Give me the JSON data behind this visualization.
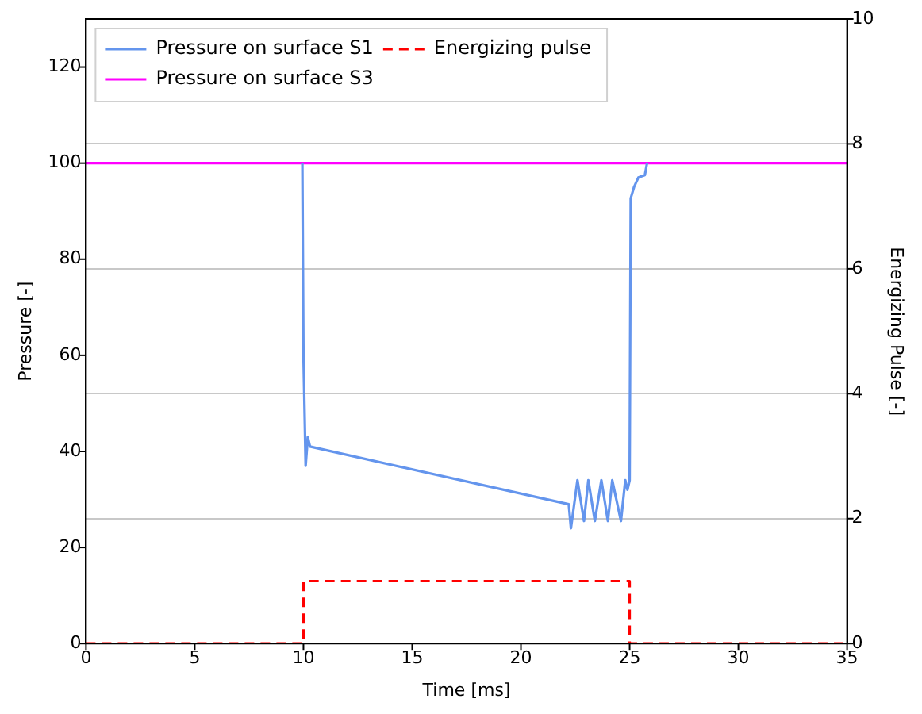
{
  "chart_data": {
    "type": "line",
    "xlabel": "Time [ms]",
    "ylabel": "Pressure [-]",
    "y2label": "Energizing Pulse [-]",
    "xlim": [
      0,
      35
    ],
    "xticks": [
      0,
      5,
      10,
      15,
      20,
      25,
      30,
      35
    ],
    "ylim": [
      0,
      130
    ],
    "yticks": [
      0,
      20,
      40,
      60,
      80,
      100,
      120
    ],
    "y2lim": [
      0,
      10
    ],
    "y2ticks": [
      0,
      2,
      4,
      6,
      8,
      10
    ],
    "grid": "y2",
    "legend": "top left",
    "marker": "none",
    "series": [
      {
        "name": "Pressure on surface S1",
        "color": "#6495ed",
        "x": [
          9.95,
          10.0,
          10.1,
          10.2,
          10.3,
          22.2,
          22.3,
          22.6,
          22.9,
          23.1,
          23.4,
          23.7,
          24.0,
          24.2,
          24.6,
          24.8,
          24.9,
          25.0,
          25.05,
          25.2,
          25.4,
          25.7,
          25.8
        ],
        "values": [
          100,
          60,
          37,
          43,
          41,
          29,
          24,
          34,
          25.5,
          34,
          25.5,
          34,
          25.5,
          34,
          25.5,
          34,
          32,
          34,
          92.7,
          95,
          97,
          97.5,
          100
        ]
      },
      {
        "name": "Pressure on surface S3",
        "color": "#ff00ff",
        "x": [
          0,
          35
        ],
        "values": [
          100,
          100
        ]
      },
      {
        "name": "Energizing pulse",
        "color": "#ff0000",
        "axis": "y2",
        "line_style": "dashed",
        "x": [
          0,
          10,
          10,
          25,
          25,
          35
        ],
        "values": [
          0,
          0,
          1,
          1,
          0,
          0
        ]
      }
    ]
  }
}
